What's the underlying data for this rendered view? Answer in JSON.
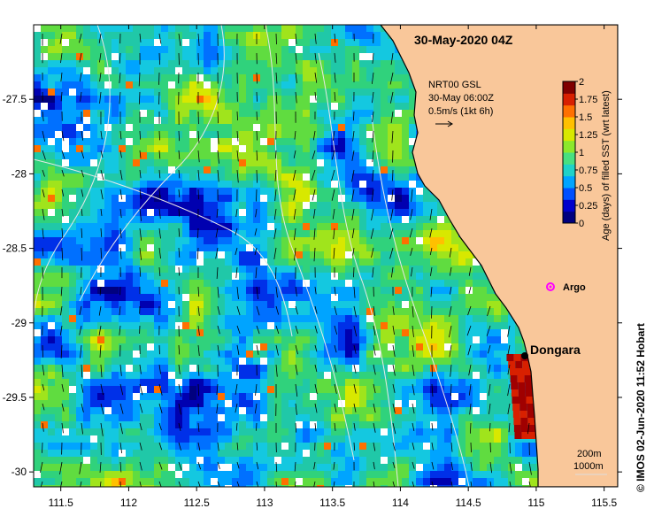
{
  "map": {
    "title": "30-May-2020 04Z",
    "x_ticks": [
      "111.5",
      "112",
      "112.5",
      "113",
      "113.5",
      "114",
      "114.5",
      "115",
      "115.5"
    ],
    "y_ticks": [
      "-27.5",
      "-28",
      "-28.5",
      "-29",
      "-29.5",
      "-30"
    ],
    "lon_range": [
      111.3,
      115.6
    ],
    "lat_range": [
      -27.0,
      -30.1
    ],
    "land_color": "#f9c79a",
    "coast_color": "#000000"
  },
  "current_annotation": {
    "line1": "NRT00 GSL",
    "line2": "30-May 06:00Z",
    "line3": "0.5m/s (1kt 6h)"
  },
  "colorbar": {
    "label": "Age (days) of filled SST (wrt latest)",
    "ticks": [
      "2",
      "1.75",
      "1.5",
      "1.25",
      "1",
      "0.75",
      "0.5",
      "0.25",
      "0"
    ],
    "colors": [
      "#00007f",
      "#0000cc",
      "#0050ff",
      "#00a4ff",
      "#1fd2c8",
      "#48e080",
      "#8ce82c",
      "#d8e800",
      "#ffc000",
      "#ff7000",
      "#d82000",
      "#800000"
    ]
  },
  "places": {
    "town": "Dongara",
    "argo": "Argo"
  },
  "scale_legend": {
    "depth1": "200m",
    "depth2": "1000m"
  },
  "credit": "© IMOS 02-Jun-2020 11:52 Hobart"
}
